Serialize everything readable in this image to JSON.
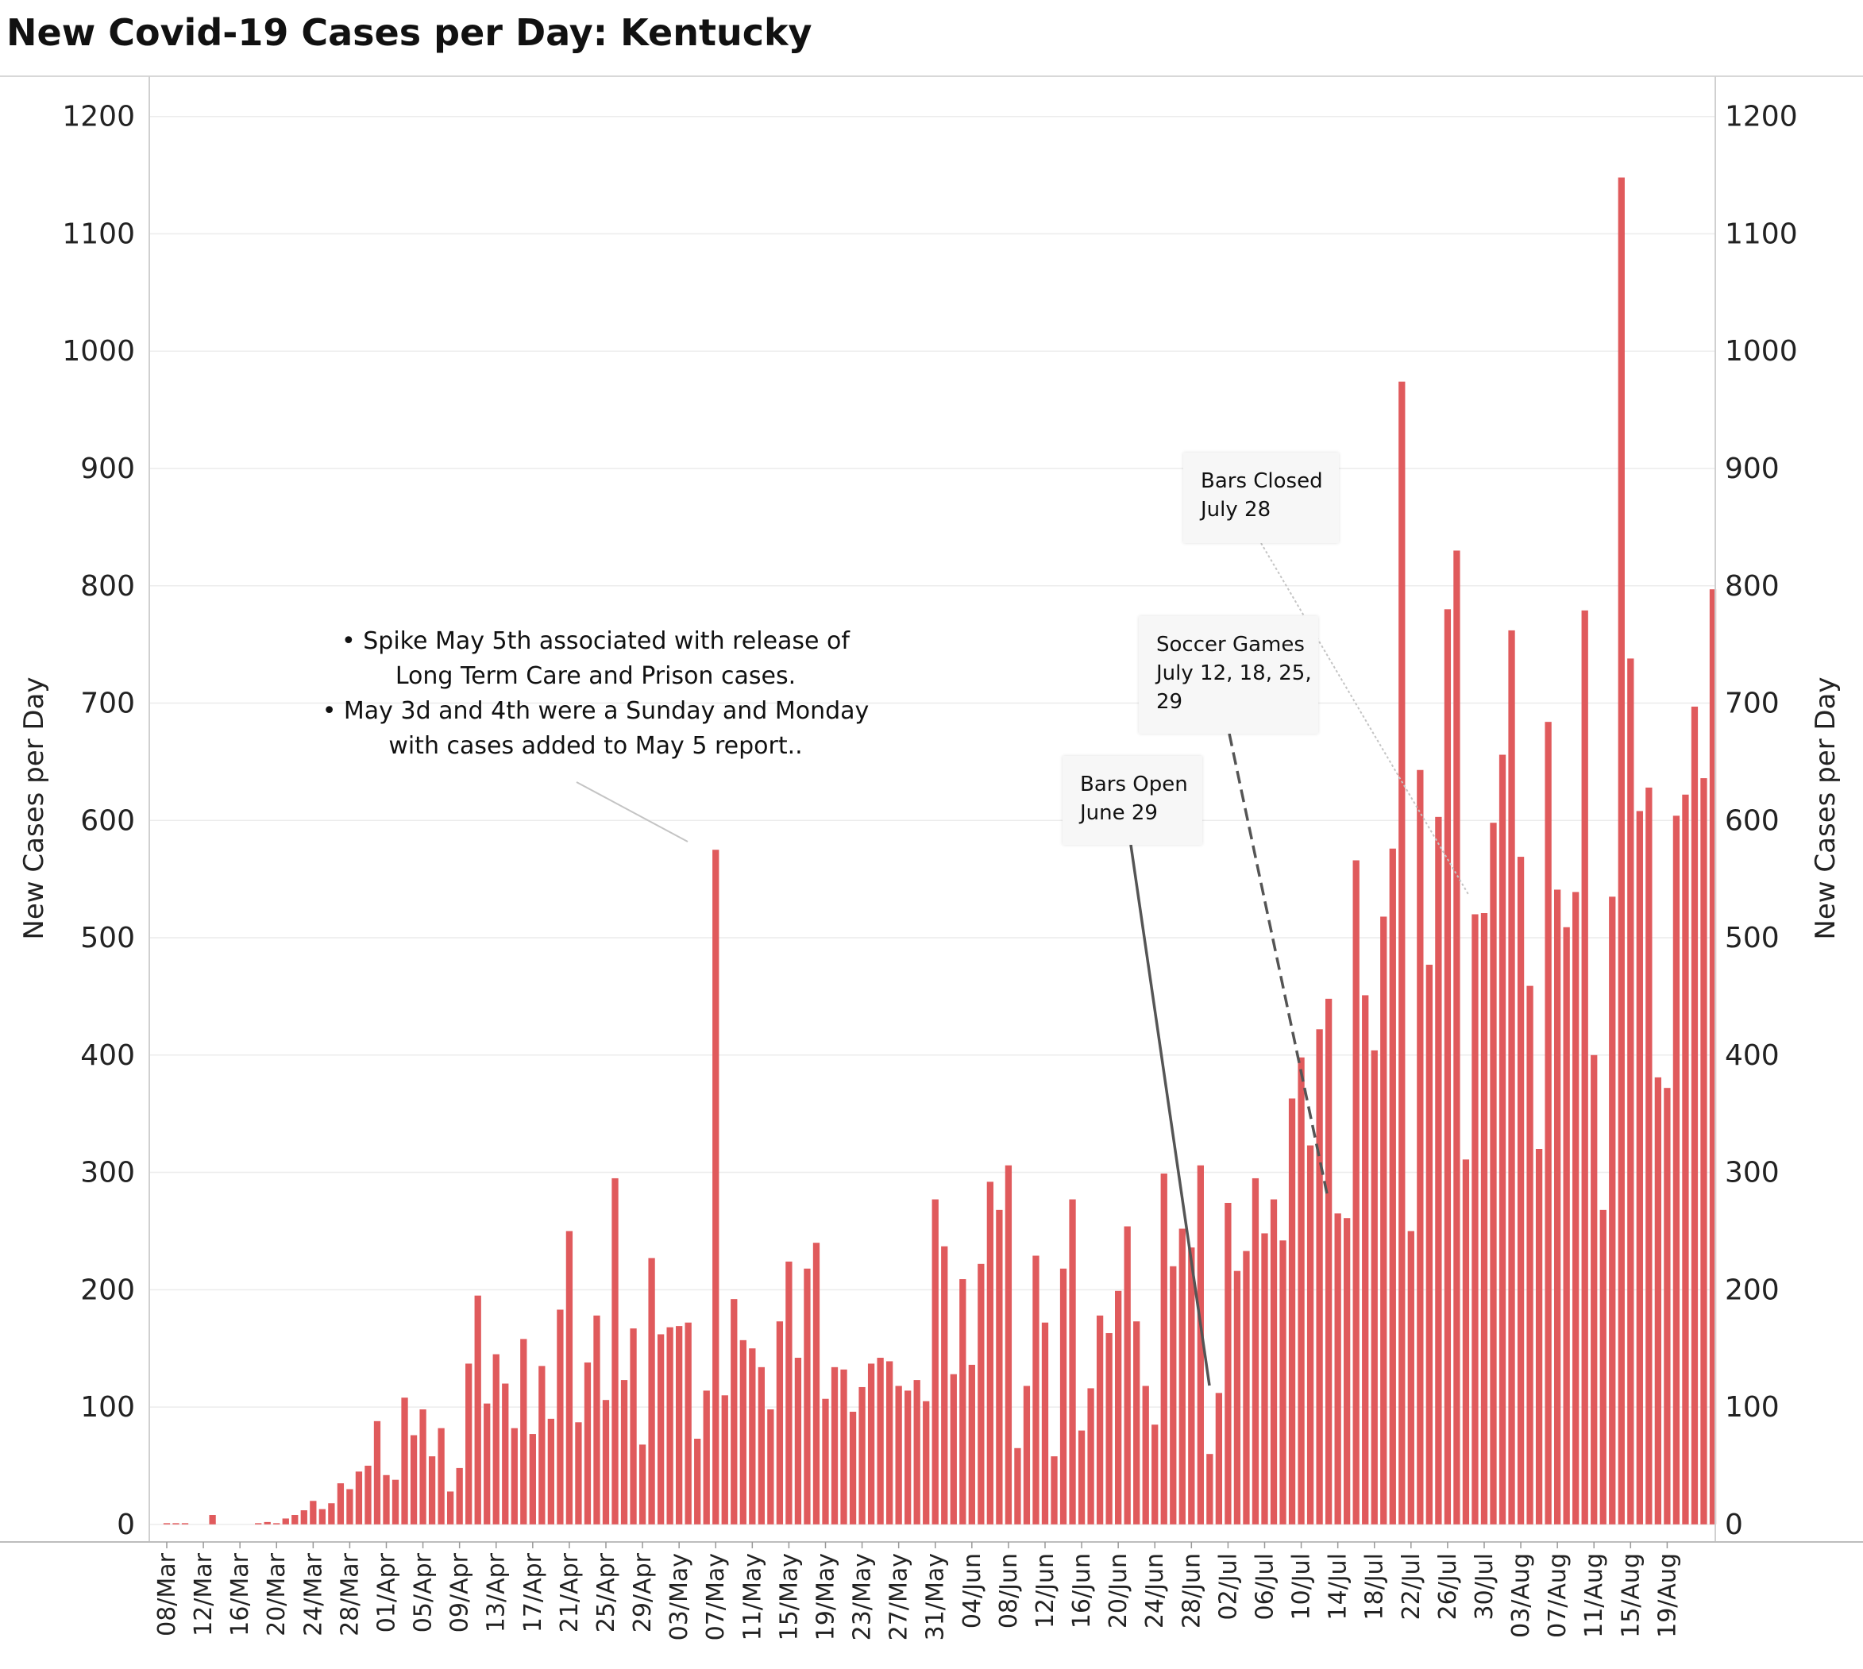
{
  "chart_data": {
    "type": "bar",
    "title": "New Covid-19 Cases per Day: Kentucky",
    "ylabel": "New Cases per Day",
    "y2label": "New Cases per Day",
    "ylim": [
      -15,
      1235
    ],
    "yticks": [
      0,
      100,
      200,
      300,
      400,
      500,
      600,
      700,
      800,
      900,
      1000,
      1100,
      1200
    ],
    "bar_color": "#e05a5c",
    "grid": true,
    "start_date": "2020-03-08",
    "x_tick_labels": [
      "08/Mar",
      "12/Mar",
      "16/Mar",
      "20/Mar",
      "24/Mar",
      "28/Mar",
      "01/Apr",
      "05/Apr",
      "09/Apr",
      "13/Apr",
      "17/Apr",
      "21/Apr",
      "25/Apr",
      "29/Apr",
      "03/May",
      "07/May",
      "11/May",
      "15/May",
      "19/May",
      "23/May",
      "27/May",
      "31/May",
      "04/Jun",
      "08/Jun",
      "12/Jun",
      "16/Jun",
      "20/Jun",
      "24/Jun",
      "28/Jun",
      "02/Jul",
      "06/Jul",
      "10/Jul",
      "14/Jul",
      "18/Jul",
      "22/Jul",
      "26/Jul",
      "30/Jul",
      "03/Aug",
      "07/Aug",
      "11/Aug",
      "15/Aug",
      "19/Aug"
    ],
    "values": [
      1,
      1,
      1,
      0,
      0,
      8,
      0,
      0,
      0,
      0,
      1,
      2,
      1,
      5,
      8,
      12,
      20,
      13,
      18,
      35,
      30,
      45,
      50,
      88,
      42,
      38,
      108,
      76,
      98,
      58,
      82,
      28,
      48,
      137,
      195,
      103,
      145,
      120,
      82,
      158,
      77,
      135,
      90,
      183,
      250,
      87,
      138,
      178,
      106,
      295,
      123,
      167,
      68,
      227,
      162,
      168,
      169,
      172,
      73,
      114,
      575,
      110,
      192,
      157,
      150,
      134,
      98,
      173,
      224,
      142,
      218,
      240,
      107,
      134,
      132,
      96,
      117,
      137,
      142,
      139,
      118,
      114,
      123,
      105,
      277,
      237,
      128,
      209,
      136,
      222,
      292,
      268,
      306,
      65,
      118,
      229,
      172,
      58,
      218,
      277,
      80,
      116,
      178,
      163,
      199,
      254,
      173,
      118,
      85,
      299,
      220,
      252,
      236,
      306,
      60,
      112,
      274,
      216,
      233,
      295,
      248,
      277,
      242,
      363,
      398,
      323,
      422,
      448,
      265,
      261,
      566,
      451,
      404,
      518,
      576,
      974,
      250,
      643,
      477,
      603,
      780,
      830,
      311,
      520,
      521,
      598,
      656,
      762,
      569,
      459,
      320,
      684,
      541,
      509,
      539,
      779,
      400,
      268,
      535,
      1148,
      738,
      608,
      628,
      381,
      372,
      604,
      622,
      697,
      636,
      797
    ]
  },
  "annotations": {
    "spike": {
      "lines": [
        "• Spike May 5th associated with release of",
        "Long Term Care and Prison cases.",
        "• May 3d and 4th were a Sunday and Monday",
        "with cases added to May 5 report.."
      ]
    },
    "bars_open": {
      "lines": [
        "Bars Open",
        "June 29"
      ]
    },
    "soccer": {
      "lines": [
        "Soccer Games",
        "July 12, 18, 25,",
        "29"
      ]
    },
    "bars_closed": {
      "lines": [
        "Bars Closed",
        "July 28"
      ]
    }
  }
}
